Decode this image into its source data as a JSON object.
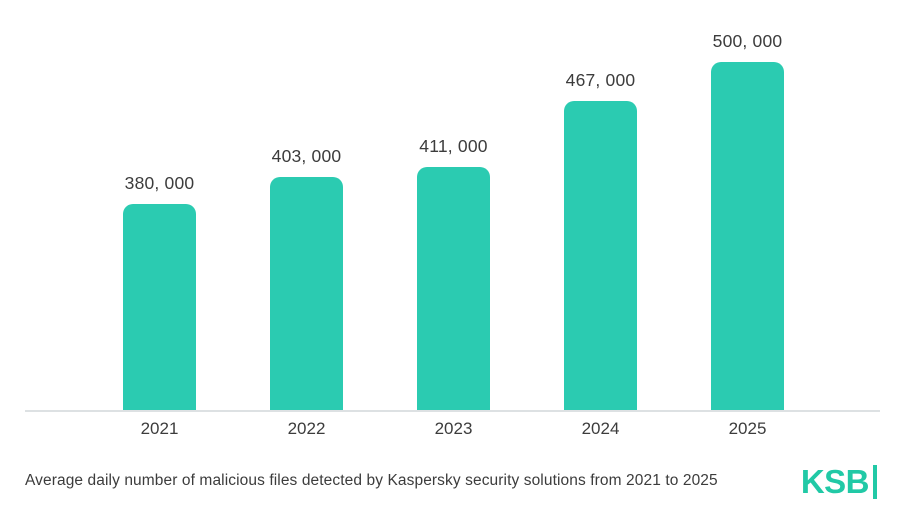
{
  "chart_data": {
    "type": "bar",
    "title": "",
    "xlabel": "",
    "ylabel": "",
    "categories": [
      "2021",
      "2022",
      "2023",
      "2024",
      "2025"
    ],
    "values": [
      380000,
      403000,
      411000,
      467000,
      500000
    ],
    "value_labels": [
      "380, 000",
      "403, 000",
      "411, 000",
      "467, 000",
      "500, 000"
    ],
    "ylim": [
      206000,
      500000
    ],
    "grid": false,
    "legend": "none",
    "bar_color": "#2BCBB1",
    "axis_line_color": "#DDE1E3",
    "label_color": "#3C3C3C"
  },
  "caption": "Average daily number of malicious files detected by Kaspersky security solutions from 2021 to 2025",
  "logo": {
    "text": "KSB",
    "color": "#21C9A6"
  },
  "colors": {
    "background": "#FFFFFF",
    "text": "#3C3C3C"
  }
}
